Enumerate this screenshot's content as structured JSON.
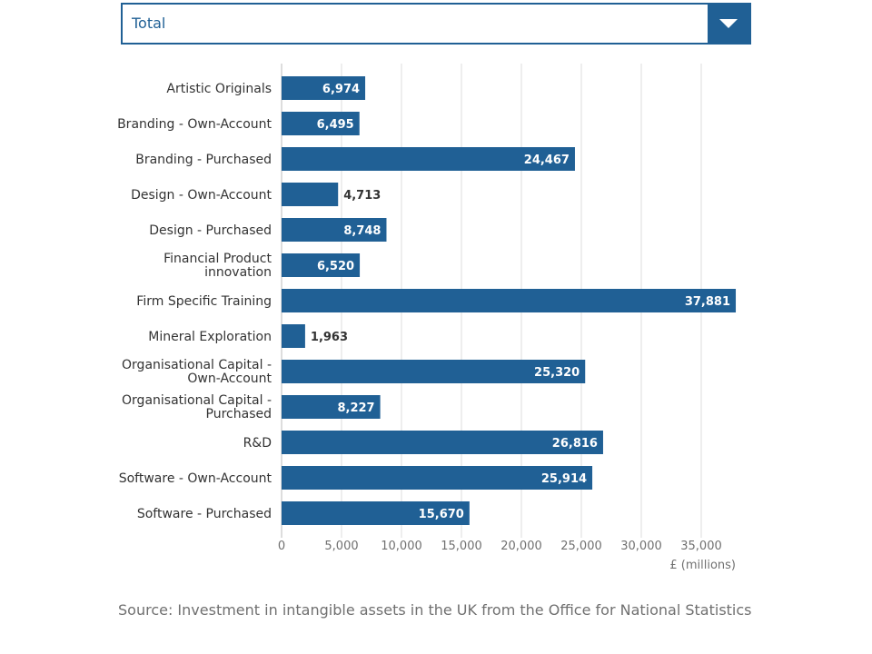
{
  "dropdown": {
    "selected": "Total"
  },
  "colors": {
    "accent": "#206095",
    "grid": "#dddddd",
    "text": "#333333",
    "muted": "#707070"
  },
  "chart_data": {
    "type": "bar",
    "orientation": "horizontal",
    "categories": [
      "Artistic Originals",
      "Branding - Own-Account",
      "Branding - Purchased",
      "Design - Own-Account",
      "Design - Purchased",
      "Financial Product innovation",
      "Firm Specific Training",
      "Mineral Exploration",
      "Organisational Capital - Own-Account",
      "Organisational Capital - Purchased",
      "R&D",
      "Software - Own-Account",
      "Software - Purchased"
    ],
    "category_lines": [
      [
        "Artistic Originals"
      ],
      [
        "Branding - Own-Account"
      ],
      [
        "Branding - Purchased"
      ],
      [
        "Design - Own-Account"
      ],
      [
        "Design - Purchased"
      ],
      [
        "Financial Product",
        "innovation"
      ],
      [
        "Firm Specific Training"
      ],
      [
        "Mineral Exploration"
      ],
      [
        "Organisational Capital -",
        "Own-Account"
      ],
      [
        "Organisational Capital -",
        "Purchased"
      ],
      [
        "R&D"
      ],
      [
        "Software - Own-Account"
      ],
      [
        "Software - Purchased"
      ]
    ],
    "values": [
      6974,
      6495,
      24467,
      4713,
      8748,
      6520,
      37881,
      1963,
      25320,
      8227,
      26816,
      25914,
      15670
    ],
    "value_labels": [
      "6,974",
      "6,495",
      "24,467",
      "4,713",
      "8,748",
      "6,520",
      "37,881",
      "1,963",
      "25,320",
      "8,227",
      "26,816",
      "25,914",
      "15,670"
    ],
    "xticks": [
      0,
      5000,
      10000,
      15000,
      20000,
      25000,
      30000,
      35000
    ],
    "xtick_labels": [
      "0",
      "5,000",
      "10,000",
      "15,000",
      "20,000",
      "25,000",
      "30,000",
      "35,000"
    ],
    "xlim": [
      0,
      38000
    ],
    "xlabel": "£ (millions)",
    "grid": true,
    "bar_color": "#206095"
  },
  "source": "Source: Investment in intangible assets in the UK from the Office for National Statistics"
}
